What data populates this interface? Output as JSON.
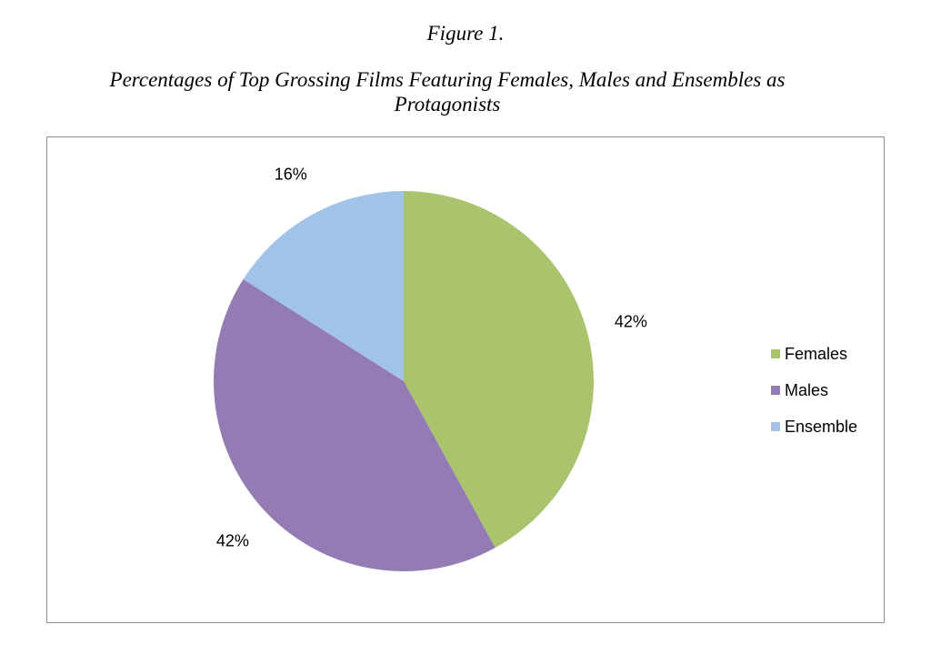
{
  "figure": {
    "label": "Figure 1.",
    "title": "Percentages of Top Grossing Films Featuring Females, Males and Ensembles as Protagonists"
  },
  "chart_data": {
    "type": "pie",
    "title": "Percentages of Top Grossing Films Featuring Females, Males and Ensembles as Protagonists",
    "categories": [
      "Females",
      "Males",
      "Ensemble"
    ],
    "values": [
      42,
      42,
      16
    ],
    "data_labels": [
      "42%",
      "42%",
      "16%"
    ],
    "colors": [
      "#aac46e",
      "#937bb3",
      "#a1c3e8"
    ],
    "start_angle": "12 o'clock",
    "direction": "clockwise",
    "legend": {
      "placement": "right",
      "entries": [
        "Females",
        "Males",
        "Ensemble"
      ]
    }
  }
}
